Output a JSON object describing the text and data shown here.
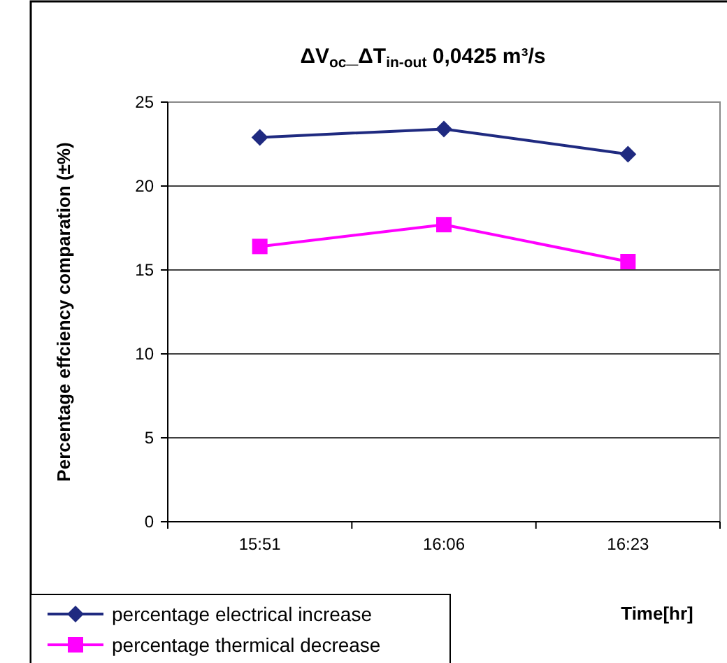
{
  "chart_data": {
    "type": "line",
    "title": "ΔV$_{oc}$_ΔT$_{in-out}$ 0,0425 m³/s",
    "xlabel": "Time[hr]",
    "ylabel": "Percentage effciency comparation (±%)",
    "categories": [
      "15:51",
      "16:06",
      "16:23"
    ],
    "series": [
      {
        "name": "percentage electrical increase",
        "color": "#1f2a80",
        "marker": "diamond",
        "values": [
          22.9,
          23.4,
          21.9
        ]
      },
      {
        "name": "percentage thermical decrease",
        "color": "#ff00ff",
        "marker": "square",
        "values": [
          16.4,
          17.7,
          15.5
        ]
      }
    ],
    "ylim": [
      0,
      25
    ],
    "yticks": [
      0,
      5,
      10,
      15,
      20,
      25
    ],
    "grid": "y",
    "legend": "bottom left"
  }
}
